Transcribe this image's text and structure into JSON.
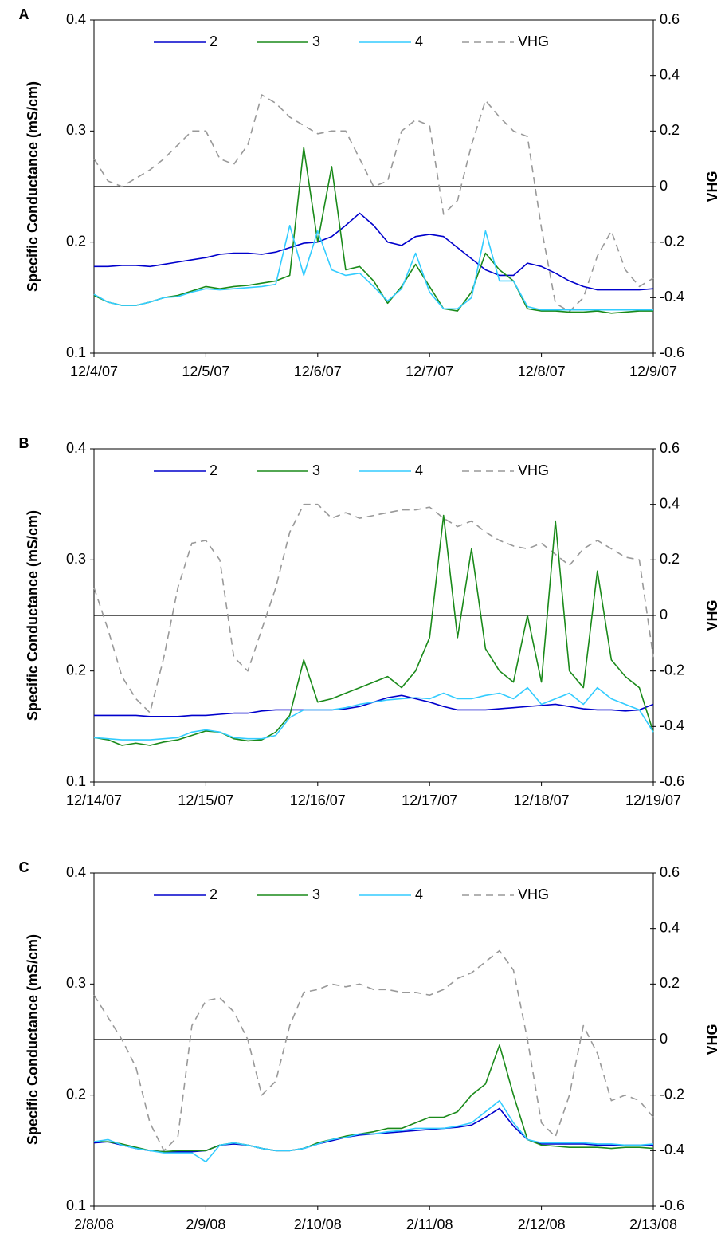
{
  "chart_data": [
    {
      "type": "line",
      "label": "A",
      "ylabel": "Specific Conductance (mS/cm)",
      "y2label": "VHG",
      "x": [
        0,
        0.125,
        0.25,
        0.375,
        0.5,
        0.625,
        0.75,
        0.875,
        1,
        1.125,
        1.25,
        1.375,
        1.5,
        1.625,
        1.75,
        1.875,
        2,
        2.125,
        2.25,
        2.375,
        2.5,
        2.625,
        2.75,
        2.875,
        3,
        3.125,
        3.25,
        3.375,
        3.5,
        3.625,
        3.75,
        3.875,
        4,
        4.125,
        4.25,
        4.375,
        4.5,
        4.625,
        4.75,
        4.875,
        5
      ],
      "xlim": [
        0,
        5
      ],
      "xticks": [
        {
          "value": 0,
          "label": "12/4/07"
        },
        {
          "value": 1,
          "label": "12/5/07"
        },
        {
          "value": 2,
          "label": "12/6/07"
        },
        {
          "value": 3,
          "label": "12/7/07"
        },
        {
          "value": 4,
          "label": "12/8/07"
        },
        {
          "value": 5,
          "label": "12/9/07"
        }
      ],
      "ylim": [
        0.1,
        0.4
      ],
      "yticks": [
        0.1,
        0.2,
        0.3,
        0.4
      ],
      "y2lim": [
        -0.6,
        0.6
      ],
      "y2ticks": [
        -0.6,
        -0.4,
        -0.2,
        0,
        0.2,
        0.4,
        0.6
      ],
      "reference_line": {
        "axis": "y2",
        "value": 0
      },
      "series": [
        {
          "name": "2",
          "color": "#0000cc",
          "values": [
            0.178,
            0.178,
            0.179,
            0.179,
            0.178,
            0.18,
            0.182,
            0.184,
            0.186,
            0.189,
            0.19,
            0.19,
            0.189,
            0.191,
            0.195,
            0.199,
            0.2,
            0.205,
            0.215,
            0.226,
            0.215,
            0.2,
            0.197,
            0.205,
            0.207,
            0.205,
            0.195,
            0.185,
            0.175,
            0.17,
            0.17,
            0.181,
            0.178,
            0.172,
            0.165,
            0.16,
            0.157,
            0.157,
            0.157,
            0.157,
            0.158
          ]
        },
        {
          "name": "3",
          "color": "#1a8a1a",
          "values": [
            0.152,
            0.146,
            0.143,
            0.143,
            0.146,
            0.15,
            0.152,
            0.156,
            0.16,
            0.158,
            0.16,
            0.161,
            0.163,
            0.165,
            0.17,
            0.285,
            0.2,
            0.268,
            0.175,
            0.178,
            0.165,
            0.145,
            0.16,
            0.18,
            0.16,
            0.14,
            0.138,
            0.155,
            0.19,
            0.175,
            0.165,
            0.14,
            0.138,
            0.138,
            0.137,
            0.137,
            0.138,
            0.136,
            0.137,
            0.138,
            0.138
          ]
        },
        {
          "name": "4",
          "color": "#33ccff",
          "values": [
            0.153,
            0.146,
            0.143,
            0.143,
            0.146,
            0.15,
            0.151,
            0.155,
            0.158,
            0.157,
            0.158,
            0.159,
            0.16,
            0.162,
            0.215,
            0.17,
            0.21,
            0.175,
            0.17,
            0.172,
            0.16,
            0.147,
            0.158,
            0.19,
            0.155,
            0.14,
            0.14,
            0.15,
            0.21,
            0.165,
            0.165,
            0.142,
            0.139,
            0.139,
            0.139,
            0.139,
            0.139,
            0.139,
            0.139,
            0.139,
            0.139
          ]
        },
        {
          "name": "VHG",
          "color": "#999999",
          "linestyle": "dashed",
          "axis": "y2",
          "values": [
            0.1,
            0.02,
            0.0,
            0.03,
            0.06,
            0.1,
            0.15,
            0.2,
            0.2,
            0.1,
            0.08,
            0.15,
            0.33,
            0.3,
            0.25,
            0.22,
            0.19,
            0.2,
            0.2,
            0.1,
            0.0,
            0.02,
            0.2,
            0.24,
            0.22,
            -0.1,
            -0.05,
            0.15,
            0.31,
            0.25,
            0.2,
            0.18,
            -0.15,
            -0.42,
            -0.45,
            -0.4,
            -0.25,
            -0.16,
            -0.3,
            -0.36,
            -0.33
          ]
        }
      ]
    },
    {
      "type": "line",
      "label": "B",
      "ylabel": "Specific Conductance (mS/cm)",
      "y2label": "VHG",
      "x": [
        0,
        0.125,
        0.25,
        0.375,
        0.5,
        0.625,
        0.75,
        0.875,
        1,
        1.125,
        1.25,
        1.375,
        1.5,
        1.625,
        1.75,
        1.875,
        2,
        2.125,
        2.25,
        2.375,
        2.5,
        2.625,
        2.75,
        2.875,
        3,
        3.125,
        3.25,
        3.375,
        3.5,
        3.625,
        3.75,
        3.875,
        4,
        4.125,
        4.25,
        4.375,
        4.5,
        4.625,
        4.75,
        4.875,
        5
      ],
      "xlim": [
        0,
        5
      ],
      "xticks": [
        {
          "value": 0,
          "label": "12/14/07"
        },
        {
          "value": 1,
          "label": "12/15/07"
        },
        {
          "value": 2,
          "label": "12/16/07"
        },
        {
          "value": 3,
          "label": "12/17/07"
        },
        {
          "value": 4,
          "label": "12/18/07"
        },
        {
          "value": 5,
          "label": "12/19/07"
        }
      ],
      "ylim": [
        0.1,
        0.4
      ],
      "yticks": [
        0.1,
        0.2,
        0.3,
        0.4
      ],
      "y2lim": [
        -0.6,
        0.6
      ],
      "y2ticks": [
        -0.6,
        -0.4,
        -0.2,
        0,
        0.2,
        0.4,
        0.6
      ],
      "reference_line": {
        "axis": "y2",
        "value": 0
      },
      "series": [
        {
          "name": "2",
          "color": "#0000cc",
          "values": [
            0.16,
            0.16,
            0.16,
            0.16,
            0.159,
            0.159,
            0.159,
            0.16,
            0.16,
            0.161,
            0.162,
            0.162,
            0.164,
            0.165,
            0.165,
            0.165,
            0.165,
            0.165,
            0.166,
            0.168,
            0.172,
            0.176,
            0.178,
            0.175,
            0.172,
            0.168,
            0.165,
            0.165,
            0.165,
            0.166,
            0.167,
            0.168,
            0.169,
            0.17,
            0.168,
            0.166,
            0.165,
            0.165,
            0.164,
            0.165,
            0.17
          ]
        },
        {
          "name": "3",
          "color": "#1a8a1a",
          "values": [
            0.14,
            0.138,
            0.133,
            0.135,
            0.133,
            0.136,
            0.138,
            0.142,
            0.146,
            0.145,
            0.139,
            0.137,
            0.138,
            0.145,
            0.16,
            0.21,
            0.172,
            0.175,
            0.18,
            0.185,
            0.19,
            0.195,
            0.185,
            0.2,
            0.23,
            0.34,
            0.23,
            0.31,
            0.22,
            0.2,
            0.19,
            0.25,
            0.19,
            0.335,
            0.2,
            0.185,
            0.29,
            0.21,
            0.195,
            0.185,
            0.145
          ]
        },
        {
          "name": "4",
          "color": "#33ccff",
          "values": [
            0.14,
            0.139,
            0.138,
            0.138,
            0.138,
            0.139,
            0.14,
            0.145,
            0.147,
            0.145,
            0.14,
            0.139,
            0.139,
            0.142,
            0.158,
            0.165,
            0.165,
            0.165,
            0.167,
            0.17,
            0.172,
            0.174,
            0.175,
            0.176,
            0.175,
            0.18,
            0.175,
            0.175,
            0.178,
            0.18,
            0.175,
            0.185,
            0.17,
            0.175,
            0.18,
            0.17,
            0.185,
            0.175,
            0.17,
            0.165,
            0.145
          ]
        },
        {
          "name": "VHG",
          "color": "#999999",
          "linestyle": "dashed",
          "axis": "y2",
          "values": [
            0.1,
            -0.05,
            -0.22,
            -0.3,
            -0.35,
            -0.15,
            0.1,
            0.26,
            0.27,
            0.2,
            -0.15,
            -0.2,
            -0.05,
            0.1,
            0.3,
            0.4,
            0.4,
            0.35,
            0.37,
            0.35,
            0.36,
            0.37,
            0.38,
            0.38,
            0.39,
            0.35,
            0.32,
            0.34,
            0.3,
            0.27,
            0.25,
            0.24,
            0.26,
            0.22,
            0.18,
            0.24,
            0.27,
            0.24,
            0.21,
            0.2,
            -0.15
          ]
        }
      ]
    },
    {
      "type": "line",
      "label": "C",
      "ylabel": "Specific Conductance (mS/cm)",
      "y2label": "VHG",
      "x": [
        0,
        0.125,
        0.25,
        0.375,
        0.5,
        0.625,
        0.75,
        0.875,
        1,
        1.125,
        1.25,
        1.375,
        1.5,
        1.625,
        1.75,
        1.875,
        2,
        2.125,
        2.25,
        2.375,
        2.5,
        2.625,
        2.75,
        2.875,
        3,
        3.125,
        3.25,
        3.375,
        3.5,
        3.625,
        3.75,
        3.875,
        4,
        4.125,
        4.25,
        4.375,
        4.5,
        4.625,
        4.75,
        4.875,
        5
      ],
      "xlim": [
        0,
        5
      ],
      "xticks": [
        {
          "value": 0,
          "label": "2/8/08"
        },
        {
          "value": 1,
          "label": "2/9/08"
        },
        {
          "value": 2,
          "label": "2/10/08"
        },
        {
          "value": 3,
          "label": "2/11/08"
        },
        {
          "value": 4,
          "label": "2/12/08"
        },
        {
          "value": 5,
          "label": "2/13/08"
        }
      ],
      "ylim": [
        0.1,
        0.4
      ],
      "yticks": [
        0.1,
        0.2,
        0.3,
        0.4
      ],
      "y2lim": [
        -0.6,
        0.6
      ],
      "y2ticks": [
        -0.6,
        -0.4,
        -0.2,
        0,
        0.2,
        0.4,
        0.6
      ],
      "reference_line": {
        "axis": "y2",
        "value": 0
      },
      "series": [
        {
          "name": "2",
          "color": "#0000cc",
          "values": [
            0.157,
            0.158,
            0.155,
            0.152,
            0.15,
            0.149,
            0.149,
            0.149,
            0.15,
            0.155,
            0.156,
            0.155,
            0.152,
            0.15,
            0.15,
            0.152,
            0.156,
            0.159,
            0.162,
            0.164,
            0.165,
            0.166,
            0.167,
            0.168,
            0.169,
            0.17,
            0.171,
            0.173,
            0.18,
            0.188,
            0.172,
            0.16,
            0.156,
            0.156,
            0.156,
            0.156,
            0.155,
            0.155,
            0.155,
            0.155,
            0.155
          ]
        },
        {
          "name": "3",
          "color": "#1a8a1a",
          "values": [
            0.158,
            0.158,
            0.156,
            0.153,
            0.15,
            0.149,
            0.15,
            0.15,
            0.15,
            0.155,
            0.157,
            0.155,
            0.152,
            0.15,
            0.15,
            0.152,
            0.157,
            0.16,
            0.163,
            0.165,
            0.167,
            0.17,
            0.17,
            0.175,
            0.18,
            0.18,
            0.185,
            0.2,
            0.21,
            0.245,
            0.2,
            0.16,
            0.155,
            0.154,
            0.153,
            0.153,
            0.153,
            0.152,
            0.153,
            0.153,
            0.152
          ]
        },
        {
          "name": "4",
          "color": "#33ccff",
          "values": [
            0.158,
            0.16,
            0.155,
            0.152,
            0.15,
            0.148,
            0.148,
            0.148,
            0.14,
            0.155,
            0.157,
            0.155,
            0.152,
            0.15,
            0.15,
            0.152,
            0.156,
            0.16,
            0.162,
            0.165,
            0.165,
            0.167,
            0.168,
            0.17,
            0.17,
            0.17,
            0.172,
            0.175,
            0.185,
            0.195,
            0.175,
            0.16,
            0.157,
            0.157,
            0.157,
            0.157,
            0.156,
            0.156,
            0.155,
            0.155,
            0.156
          ]
        },
        {
          "name": "VHG",
          "color": "#999999",
          "linestyle": "dashed",
          "axis": "y2",
          "values": [
            0.16,
            0.08,
            0.0,
            -0.1,
            -0.3,
            -0.4,
            -0.35,
            0.05,
            0.14,
            0.15,
            0.1,
            0.0,
            -0.2,
            -0.15,
            0.05,
            0.17,
            0.18,
            0.2,
            0.19,
            0.2,
            0.18,
            0.18,
            0.17,
            0.17,
            0.16,
            0.18,
            0.22,
            0.24,
            0.28,
            0.32,
            0.25,
            0.0,
            -0.3,
            -0.35,
            -0.2,
            0.05,
            -0.05,
            -0.22,
            -0.2,
            -0.22,
            -0.28
          ]
        }
      ]
    }
  ]
}
